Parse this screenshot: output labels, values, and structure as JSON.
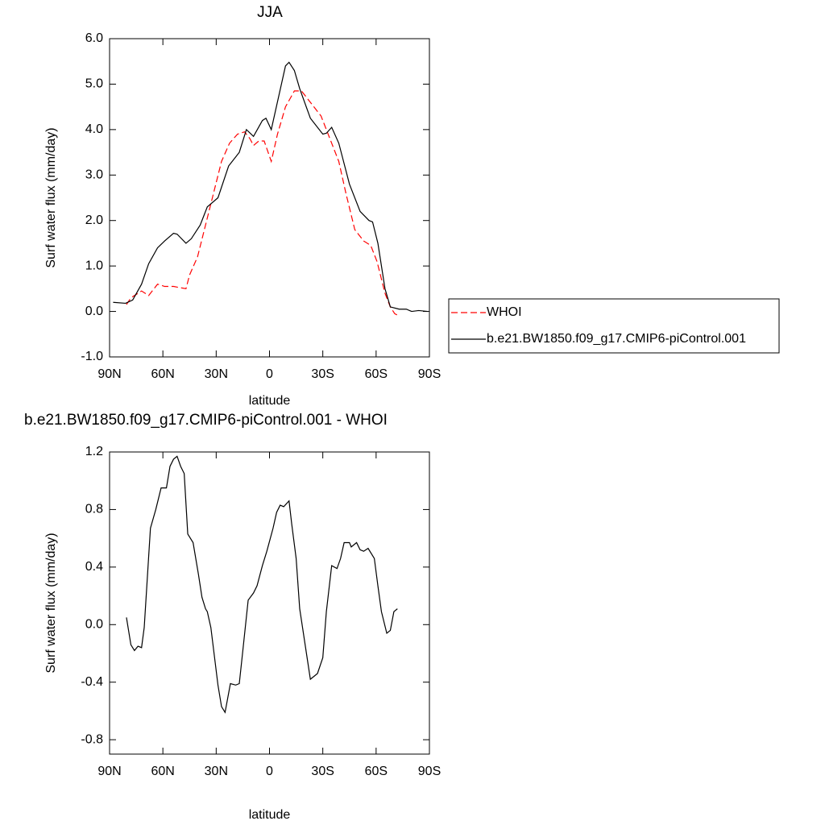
{
  "chart_data": [
    {
      "type": "line",
      "title": "JJA",
      "x_label": "latitude",
      "y_label": "Surf water flux (mm/day)",
      "xlim": [
        90,
        -90
      ],
      "xticks": [
        {
          "value": 90,
          "label": "90N"
        },
        {
          "value": 60,
          "label": "60N"
        },
        {
          "value": 30,
          "label": "30N"
        },
        0,
        {
          "value": -30,
          "label": "30S"
        },
        {
          "value": -60,
          "label": "60S"
        },
        {
          "value": -90,
          "label": "90S"
        }
      ],
      "ylim": [
        -1,
        6
      ],
      "yticks": [
        {
          "value": -1,
          "label": "-1.0"
        },
        {
          "value": 0,
          "label": "0.0"
        },
        {
          "value": 1,
          "label": "1.0"
        },
        {
          "value": 2,
          "label": "2.0"
        },
        {
          "value": 3,
          "label": "3.0"
        },
        {
          "value": 4,
          "label": "4.0"
        },
        {
          "value": 5,
          "label": "5.0"
        },
        {
          "value": 6,
          "label": "6.0"
        }
      ],
      "legend": "right",
      "series": [
        {
          "name": "WHOI",
          "color": "#ff0000",
          "linestyle": "dashed",
          "x": [
            80.5,
            78,
            72,
            68,
            63,
            59,
            54,
            47,
            45,
            40.5,
            36,
            31.5,
            27,
            22.5,
            18,
            14,
            11,
            9,
            6,
            3,
            -1,
            -4.5,
            -9,
            -14,
            -18,
            -23,
            -29,
            -34,
            -39,
            -43,
            -48,
            -53,
            -57,
            -60.5,
            -65,
            -68,
            -70.5,
            -72
          ],
          "values": [
            0.15,
            0.3,
            0.45,
            0.35,
            0.6,
            0.55,
            0.55,
            0.5,
            0.8,
            1.2,
            1.9,
            2.6,
            3.3,
            3.7,
            3.9,
            3.95,
            3.8,
            3.65,
            3.75,
            3.75,
            3.3,
            3.9,
            4.5,
            4.85,
            4.85,
            4.6,
            4.3,
            3.8,
            3.3,
            2.6,
            1.8,
            1.55,
            1.45,
            1.1,
            0.4,
            0.1,
            -0.05,
            -0.08
          ]
        },
        {
          "name": "b.e21.BW1850.f09_g17.CMIP6-piControl.001",
          "color": "#000000",
          "linestyle": "solid",
          "x": [
            88,
            81,
            77,
            72,
            68,
            63,
            59,
            54,
            52,
            47,
            44,
            39,
            35,
            29,
            23,
            17,
            13,
            9,
            4,
            2,
            -1,
            -5,
            -9,
            -11,
            -14,
            -17,
            -23,
            -30,
            -32,
            -35,
            -39,
            -45,
            -51,
            -56,
            -58,
            -61,
            -65,
            -68,
            -73,
            -77,
            -80,
            -84,
            -89
          ],
          "values": [
            0.2,
            0.18,
            0.25,
            0.6,
            1.05,
            1.4,
            1.55,
            1.72,
            1.7,
            1.5,
            1.6,
            1.9,
            2.3,
            2.5,
            3.2,
            3.5,
            4.0,
            3.85,
            4.2,
            4.25,
            4.0,
            4.7,
            5.4,
            5.48,
            5.3,
            4.9,
            4.25,
            3.9,
            3.92,
            4.05,
            3.7,
            2.8,
            2.2,
            2.0,
            1.97,
            1.5,
            0.5,
            0.1,
            0.05,
            0.05,
            0,
            0.02,
            0
          ]
        }
      ]
    },
    {
      "type": "line",
      "title": "b.e21.BW1850.f09_g17.CMIP6-piControl.001 - WHOI",
      "x_label": "latitude",
      "y_label": "Surf water flux (mm/day)",
      "xlim": [
        90,
        -90
      ],
      "xticks": [
        {
          "value": 90,
          "label": "90N"
        },
        {
          "value": 60,
          "label": "60N"
        },
        {
          "value": 30,
          "label": "30N"
        },
        0,
        {
          "value": -30,
          "label": "30S"
        },
        {
          "value": -60,
          "label": "60S"
        },
        {
          "value": -90,
          "label": "90S"
        }
      ],
      "ylim": [
        -0.9,
        1.2
      ],
      "yticks": [
        -0.8,
        -0.4,
        {
          "value": 0,
          "label": "0.0"
        },
        0.4,
        0.8,
        1.2
      ],
      "series": [
        {
          "color": "#000000",
          "linestyle": "solid",
          "x": [
            80.5,
            78,
            76,
            74,
            72,
            70.5,
            67,
            64,
            61,
            58,
            56,
            54,
            52,
            50,
            48,
            46,
            43,
            40,
            38,
            36,
            35,
            33,
            29,
            27,
            25,
            22,
            19,
            17,
            15,
            12,
            9,
            7,
            4,
            1.5,
            -2,
            -4,
            -6,
            -8,
            -11,
            -12.5,
            -15,
            -17,
            -23,
            -27,
            -30,
            -32,
            -35,
            -38,
            -40,
            -42,
            -45,
            -46,
            -49,
            -51,
            -53,
            -55.5,
            -59,
            -61,
            -63,
            -66,
            -68,
            -70,
            -72
          ],
          "values": [
            0.05,
            -0.14,
            -0.18,
            -0.15,
            -0.16,
            -0.02,
            0.67,
            0.8,
            0.95,
            0.95,
            1.1,
            1.15,
            1.17,
            1.1,
            1.05,
            0.63,
            0.57,
            0.35,
            0.19,
            0.11,
            0.09,
            -0.02,
            -0.42,
            -0.57,
            -0.61,
            -0.41,
            -0.42,
            -0.41,
            -0.18,
            0.17,
            0.22,
            0.27,
            0.41,
            0.51,
            0.67,
            0.78,
            0.83,
            0.82,
            0.86,
            0.7,
            0.46,
            0.11,
            -0.38,
            -0.34,
            -0.23,
            0.09,
            0.41,
            0.39,
            0.46,
            0.57,
            0.57,
            0.54,
            0.57,
            0.52,
            0.51,
            0.53,
            0.46,
            0.27,
            0.09,
            -0.06,
            -0.04,
            0.09,
            0.11
          ]
        }
      ]
    }
  ]
}
